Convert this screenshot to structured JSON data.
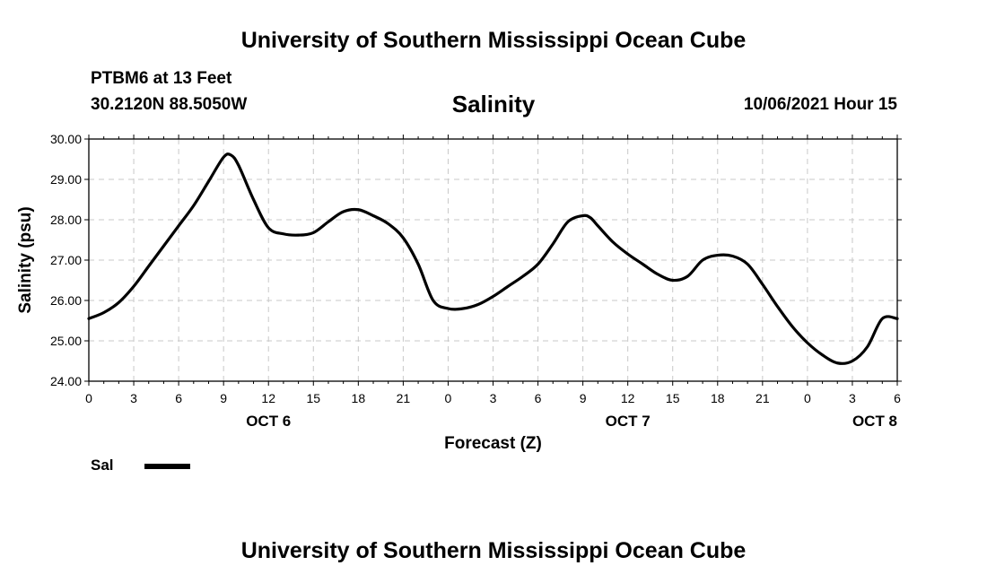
{
  "header": {
    "title": "University of Southern Mississippi Ocean Cube",
    "station": "PTBM6 at 13 Feet",
    "coords": "30.2120N  88.5050W",
    "valid_time": "10/06/2021 Hour 15"
  },
  "footer": {
    "title": "University of Southern Mississippi Ocean Cube"
  },
  "legend": {
    "label": "Sal"
  },
  "chart_data": {
    "type": "line",
    "title": "Salinity",
    "xlabel": "Forecast (Z)",
    "ylabel": "Salinity (psu)",
    "x_unit": "forecast hour",
    "xlim": [
      0,
      54
    ],
    "ylim": [
      24.0,
      30.0
    ],
    "y_ticks": [
      "24.00",
      "25.00",
      "26.00",
      "27.00",
      "28.00",
      "29.00",
      "30.00"
    ],
    "x_ticks": [
      "0",
      "3",
      "6",
      "9",
      "12",
      "15",
      "18",
      "21",
      "0",
      "3",
      "6",
      "9",
      "12",
      "15",
      "18",
      "21",
      "0",
      "3",
      "6"
    ],
    "day_labels": [
      {
        "label": "OCT 6",
        "x": 12
      },
      {
        "label": "OCT 7",
        "x": 36
      },
      {
        "label": "OCT 8",
        "x": 52.5
      }
    ],
    "grid": true,
    "legend_position": "bottom-left",
    "series": [
      {
        "name": "Sal",
        "color": "#000000",
        "x": [
          0,
          1,
          2,
          3,
          4,
          5,
          6,
          7,
          8,
          9,
          9.5,
          10,
          11,
          12,
          13,
          14,
          15,
          16,
          17,
          18,
          19,
          20,
          21,
          22,
          23,
          24,
          25,
          26,
          27,
          28,
          29,
          30,
          31,
          32,
          33,
          33.5,
          34,
          35,
          36,
          37,
          38,
          39,
          40,
          41,
          42,
          43,
          44,
          45,
          46,
          47,
          48,
          49,
          50,
          51,
          52,
          53,
          54
        ],
        "values": [
          25.55,
          25.7,
          25.95,
          26.35,
          26.85,
          27.35,
          27.85,
          28.35,
          28.95,
          29.55,
          29.6,
          29.35,
          28.5,
          27.8,
          27.65,
          27.62,
          27.68,
          27.95,
          28.2,
          28.25,
          28.1,
          27.9,
          27.55,
          26.9,
          26.0,
          25.8,
          25.8,
          25.9,
          26.1,
          26.35,
          26.6,
          26.9,
          27.4,
          27.95,
          28.1,
          28.05,
          27.85,
          27.45,
          27.15,
          26.9,
          26.65,
          26.5,
          26.6,
          27.0,
          27.12,
          27.1,
          26.9,
          26.4,
          25.85,
          25.35,
          24.95,
          24.65,
          24.45,
          24.5,
          24.85,
          25.55,
          25.55
        ]
      }
    ]
  }
}
